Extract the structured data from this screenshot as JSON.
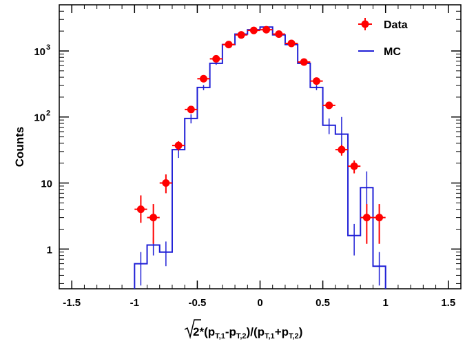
{
  "chart_data": {
    "type": "histogram",
    "ylabel": "Counts",
    "xlabel": {
      "root": "2",
      "mid1": "*(p",
      "sub1": "T,1",
      "mid2": "-p",
      "sub2": "T,2",
      "mid3": ")/(p",
      "sub3": "T,1",
      "mid4": "+p",
      "sub4": "T,2",
      "end": ")"
    },
    "xlim": [
      -1.6,
      1.6
    ],
    "ylim": [
      0.25,
      5000
    ],
    "y_scale": "log",
    "grid": false,
    "legend_position": "top-right",
    "x_ticks": [
      {
        "value": -1.5,
        "label": "-1.5"
      },
      {
        "value": -1.0,
        "label": "-1"
      },
      {
        "value": -0.5,
        "label": "-0.5"
      },
      {
        "value": 0.0,
        "label": "0"
      },
      {
        "value": 0.5,
        "label": "0.5"
      },
      {
        "value": 1.0,
        "label": "1"
      },
      {
        "value": 1.5,
        "label": "1.5"
      }
    ],
    "y_ticks": [
      {
        "value": 1,
        "label": "1"
      },
      {
        "value": 10,
        "label": "10"
      },
      {
        "value": 100,
        "label": "10",
        "exp": "2"
      },
      {
        "value": 1000,
        "label": "10",
        "exp": "3"
      }
    ],
    "series": [
      {
        "name": "Data",
        "style": "points-with-errors",
        "color": "#ff0000",
        "points": [
          {
            "x": -0.95,
            "y": 4.0,
            "lo": 2.5,
            "hi": 6.5
          },
          {
            "x": -0.85,
            "y": 3.0,
            "lo": 1.2,
            "hi": 4.8
          },
          {
            "x": -0.75,
            "y": 10.0,
            "lo": 7.0,
            "hi": 13.5
          },
          {
            "x": -0.65,
            "y": 37.0,
            "lo": 31.0,
            "hi": 43.0
          },
          {
            "x": -0.55,
            "y": 130.0,
            "lo": 118.0,
            "hi": 142.0
          },
          {
            "x": -0.45,
            "y": 380.0,
            "lo": 360.0,
            "hi": 400.0
          },
          {
            "x": -0.35,
            "y": 760.0,
            "lo": 730.0,
            "hi": 790.0
          },
          {
            "x": -0.25,
            "y": 1250.0,
            "lo": 1210.0,
            "hi": 1290.0
          },
          {
            "x": -0.15,
            "y": 1750.0,
            "lo": 1700.0,
            "hi": 1800.0
          },
          {
            "x": -0.05,
            "y": 2050.0,
            "lo": 2000.0,
            "hi": 2100.0
          },
          {
            "x": 0.05,
            "y": 2100.0,
            "lo": 2050.0,
            "hi": 2150.0
          },
          {
            "x": 0.15,
            "y": 1800.0,
            "lo": 1750.0,
            "hi": 1850.0
          },
          {
            "x": 0.25,
            "y": 1300.0,
            "lo": 1260.0,
            "hi": 1340.0
          },
          {
            "x": 0.35,
            "y": 680.0,
            "lo": 650.0,
            "hi": 710.0
          },
          {
            "x": 0.45,
            "y": 350.0,
            "lo": 332.0,
            "hi": 368.0
          },
          {
            "x": 0.55,
            "y": 150.0,
            "lo": 138.0,
            "hi": 162.0
          },
          {
            "x": 0.65,
            "y": 32.0,
            "lo": 26.0,
            "hi": 38.0
          },
          {
            "x": 0.75,
            "y": 18.0,
            "lo": 14.0,
            "hi": 22.0
          },
          {
            "x": 0.85,
            "y": 3.0,
            "lo": 1.2,
            "hi": 4.8
          },
          {
            "x": 0.95,
            "y": 3.0,
            "lo": 1.2,
            "hi": 4.8
          }
        ]
      },
      {
        "name": "MC",
        "style": "step",
        "color": "#1f1fd6",
        "bins": [
          {
            "x0": -1.0,
            "x1": -0.9,
            "y": 0.6,
            "lo": 0.28,
            "hi": 0.9
          },
          {
            "x0": -0.9,
            "x1": -0.8,
            "y": 1.15,
            "lo": 0.8,
            "hi": 1.5
          },
          {
            "x0": -0.8,
            "x1": -0.7,
            "y": 0.9,
            "lo": 0.55,
            "hi": 1.3
          },
          {
            "x0": -0.7,
            "x1": -0.6,
            "y": 32.0,
            "lo": 24.0,
            "hi": 40.0
          },
          {
            "x0": -0.6,
            "x1": -0.5,
            "y": 95.0,
            "lo": 80.0,
            "hi": 110.0
          },
          {
            "x0": -0.5,
            "x1": -0.4,
            "y": 280.0,
            "lo": 255.0,
            "hi": 305.0
          },
          {
            "x0": -0.4,
            "x1": -0.3,
            "y": 650.0,
            "lo": 615.0,
            "hi": 685.0
          },
          {
            "x0": -0.3,
            "x1": -0.2,
            "y": 1250.0,
            "lo": 1200.0,
            "hi": 1300.0
          },
          {
            "x0": -0.2,
            "x1": -0.1,
            "y": 1800.0,
            "lo": 1750.0,
            "hi": 1850.0
          },
          {
            "x0": -0.1,
            "x1": 0.0,
            "y": 2100.0,
            "lo": 2050.0,
            "hi": 2150.0
          },
          {
            "x0": 0.0,
            "x1": 0.1,
            "y": 2300.0,
            "lo": 2250.0,
            "hi": 2350.0
          },
          {
            "x0": 0.1,
            "x1": 0.2,
            "y": 1750.0,
            "lo": 1700.0,
            "hi": 1800.0
          },
          {
            "x0": 0.2,
            "x1": 0.3,
            "y": 1250.0,
            "lo": 1200.0,
            "hi": 1300.0
          },
          {
            "x0": 0.3,
            "x1": 0.4,
            "y": 650.0,
            "lo": 615.0,
            "hi": 685.0
          },
          {
            "x0": 0.4,
            "x1": 0.5,
            "y": 280.0,
            "lo": 255.0,
            "hi": 305.0
          },
          {
            "x0": 0.5,
            "x1": 0.6,
            "y": 75.0,
            "lo": 55.0,
            "hi": 95.0
          },
          {
            "x0": 0.6,
            "x1": 0.7,
            "y": 55.0,
            "lo": 35.0,
            "hi": 100.0
          },
          {
            "x0": 0.7,
            "x1": 0.8,
            "y": 1.6,
            "lo": 0.8,
            "hi": 2.4
          },
          {
            "x0": 0.8,
            "x1": 0.9,
            "y": 8.5,
            "lo": 3.5,
            "hi": 15.0
          },
          {
            "x0": 0.9,
            "x1": 1.0,
            "y": 0.55,
            "lo": 0.28,
            "hi": 0.9
          }
        ]
      }
    ]
  }
}
